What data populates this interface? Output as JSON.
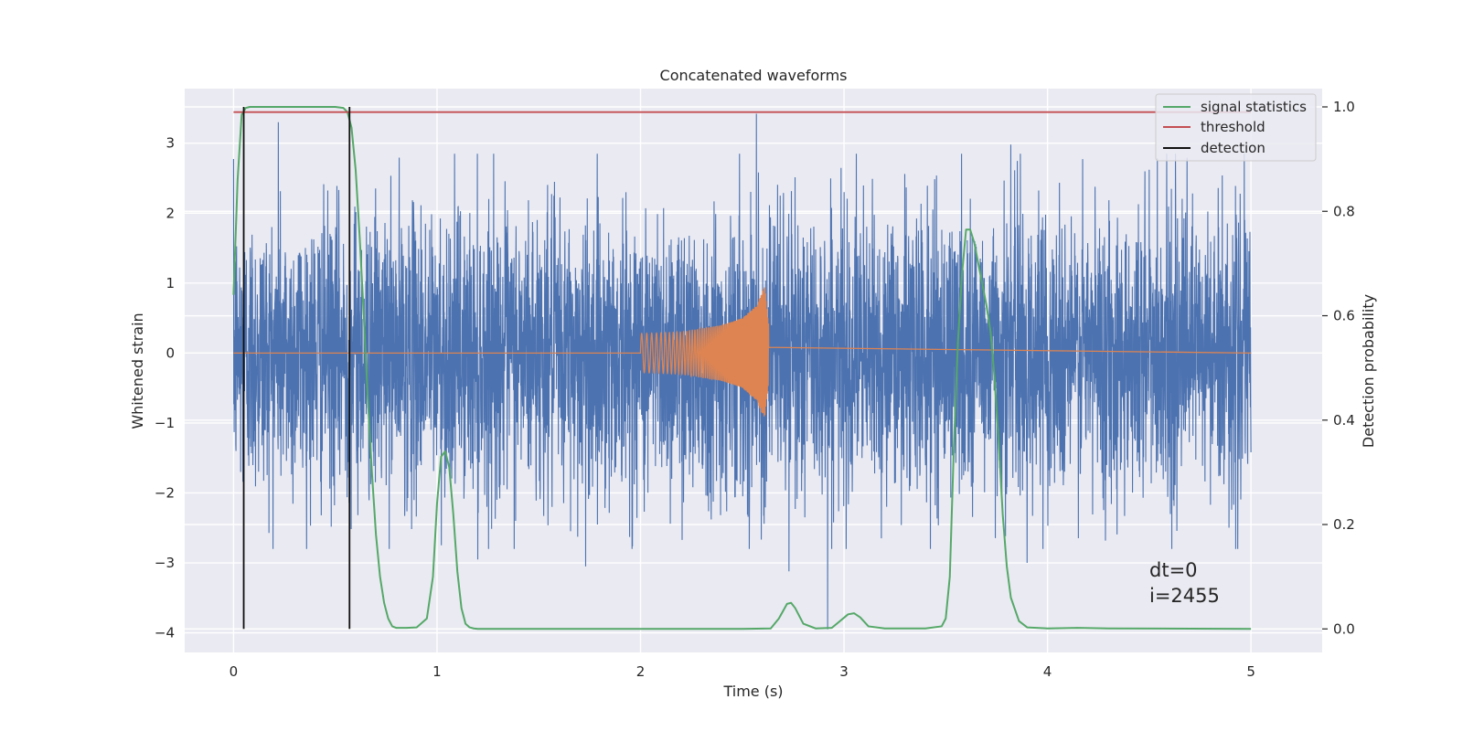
{
  "chart_data": {
    "type": "line",
    "title": "Concatenated waveforms",
    "xlabel": "Time (s)",
    "ylabel": "Whitened strain",
    "y2label": "Detection probability",
    "xlim": [
      -0.24,
      5.35
    ],
    "ylim": [
      -4.28,
      3.78
    ],
    "y2lim": [
      -0.045,
      1.035
    ],
    "xticks": [
      0,
      1,
      2,
      3,
      4,
      5
    ],
    "yticks": [
      -4,
      -3,
      -2,
      -1,
      0,
      1,
      2,
      3
    ],
    "y2ticks": [
      0.0,
      0.2,
      0.4,
      0.6,
      0.8,
      1.0
    ],
    "xtick_labels": [
      "0",
      "1",
      "2",
      "3",
      "4",
      "5"
    ],
    "ytick_labels": [
      "−4",
      "−3",
      "−2",
      "−1",
      "0",
      "1",
      "2",
      "3"
    ],
    "y2tick_labels": [
      "0.0",
      "0.2",
      "0.4",
      "0.6",
      "0.8",
      "1.0"
    ],
    "grid": true,
    "legend_position": "top-right",
    "background": "#eaeaf2",
    "series": [
      {
        "name": "",
        "kind": "noise",
        "color": "#4c72b0",
        "axis": "left",
        "x_range": [
          0,
          5
        ],
        "description_amplitude": [
          -3.2,
          3.45
        ],
        "spikes": [
          [
            2.57,
            3.42
          ],
          [
            2.92,
            -3.95
          ],
          [
            0.22,
            3.3
          ],
          [
            0.57,
            3.08
          ],
          [
            3.82,
            2.98
          ],
          [
            4.54,
            2.78
          ],
          [
            4.5,
            2.62
          ],
          [
            1.2,
            -2.95
          ],
          [
            2.73,
            -3.12
          ],
          [
            1.73,
            -3.05
          ],
          [
            3.9,
            -3.0
          ]
        ]
      },
      {
        "name": "",
        "kind": "chirp",
        "color": "#dd8452",
        "axis": "left",
        "x_range": [
          2.0,
          2.63
        ],
        "envelope": [
          [
            2.0,
            0.28
          ],
          [
            2.2,
            0.3
          ],
          [
            2.4,
            0.4
          ],
          [
            2.5,
            0.5
          ],
          [
            2.57,
            0.68
          ],
          [
            2.61,
            0.95
          ],
          [
            2.63,
            0.4
          ]
        ]
      },
      {
        "name": "signal statistics",
        "color": "#55a868",
        "axis": "right",
        "x": [
          0.0,
          0.02,
          0.04,
          0.06,
          0.08,
          0.1,
          0.2,
          0.3,
          0.4,
          0.5,
          0.54,
          0.56,
          0.58,
          0.6,
          0.62,
          0.64,
          0.66,
          0.68,
          0.7,
          0.72,
          0.74,
          0.76,
          0.78,
          0.8,
          0.85,
          0.9,
          0.95,
          0.98,
          1.0,
          1.02,
          1.04,
          1.06,
          1.08,
          1.1,
          1.12,
          1.14,
          1.16,
          1.18,
          1.2,
          1.3,
          1.5,
          2.0,
          2.5,
          2.64,
          2.68,
          2.72,
          2.74,
          2.76,
          2.8,
          2.86,
          2.94,
          2.98,
          3.02,
          3.05,
          3.08,
          3.12,
          3.2,
          3.4,
          3.48,
          3.5,
          3.52,
          3.54,
          3.56,
          3.58,
          3.6,
          3.62,
          3.64,
          3.66,
          3.68,
          3.7,
          3.72,
          3.74,
          3.76,
          3.78,
          3.8,
          3.82,
          3.86,
          3.9,
          4.0,
          4.15,
          4.3,
          5.0
        ],
        "y": [
          0.64,
          0.86,
          0.985,
          0.998,
          1.0,
          1.0,
          1.0,
          1.0,
          1.0,
          1.0,
          0.998,
          0.99,
          0.96,
          0.88,
          0.75,
          0.6,
          0.44,
          0.3,
          0.18,
          0.1,
          0.05,
          0.02,
          0.005,
          0.002,
          0.002,
          0.003,
          0.02,
          0.1,
          0.24,
          0.33,
          0.34,
          0.31,
          0.22,
          0.11,
          0.04,
          0.01,
          0.003,
          0.001,
          0.0,
          0.0,
          0.0,
          0.0,
          0.0,
          0.001,
          0.02,
          0.048,
          0.05,
          0.04,
          0.01,
          0.001,
          0.002,
          0.015,
          0.028,
          0.03,
          0.022,
          0.005,
          0.001,
          0.001,
          0.005,
          0.02,
          0.1,
          0.35,
          0.55,
          0.68,
          0.765,
          0.765,
          0.74,
          0.7,
          0.66,
          0.62,
          0.57,
          0.48,
          0.36,
          0.22,
          0.12,
          0.06,
          0.015,
          0.003,
          0.001,
          0.002,
          0.001,
          0.0
        ]
      },
      {
        "name": "threshold",
        "color": "#c44e52",
        "axis": "right",
        "x": [
          0.0,
          5.0
        ],
        "y": [
          0.99,
          0.99
        ]
      },
      {
        "name": "detection",
        "color": "#111111",
        "axis": "right",
        "kind": "vlines",
        "x": [
          0.05,
          0.57
        ],
        "y_span": [
          0.0,
          1.0
        ]
      }
    ],
    "annotation": {
      "lines": [
        "dt=0",
        "i=2455"
      ]
    }
  }
}
